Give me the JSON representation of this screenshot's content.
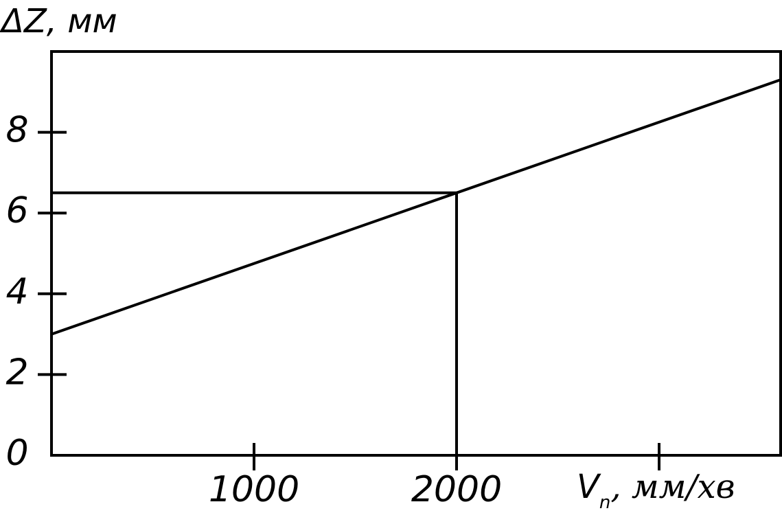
{
  "chart_data": {
    "type": "line",
    "y_label": "ΔZ, мм",
    "x_label": {
      "symbol": "V",
      "subscript": "n",
      "unit": ", мм/хв"
    },
    "x": [
      0,
      2000,
      3600
    ],
    "series": [
      {
        "color": "#000000",
        "values": [
          3,
          6.5,
          9.3
        ]
      }
    ],
    "guide": {
      "x": 2000,
      "y": 6.5
    },
    "xlim": [
      0,
      3600
    ],
    "ylim": [
      0,
      10
    ],
    "xticks": [
      1000,
      2000,
      {
        "value": 3000,
        "label": null
      }
    ],
    "yticks": [
      0,
      2,
      4,
      6,
      8
    ]
  }
}
